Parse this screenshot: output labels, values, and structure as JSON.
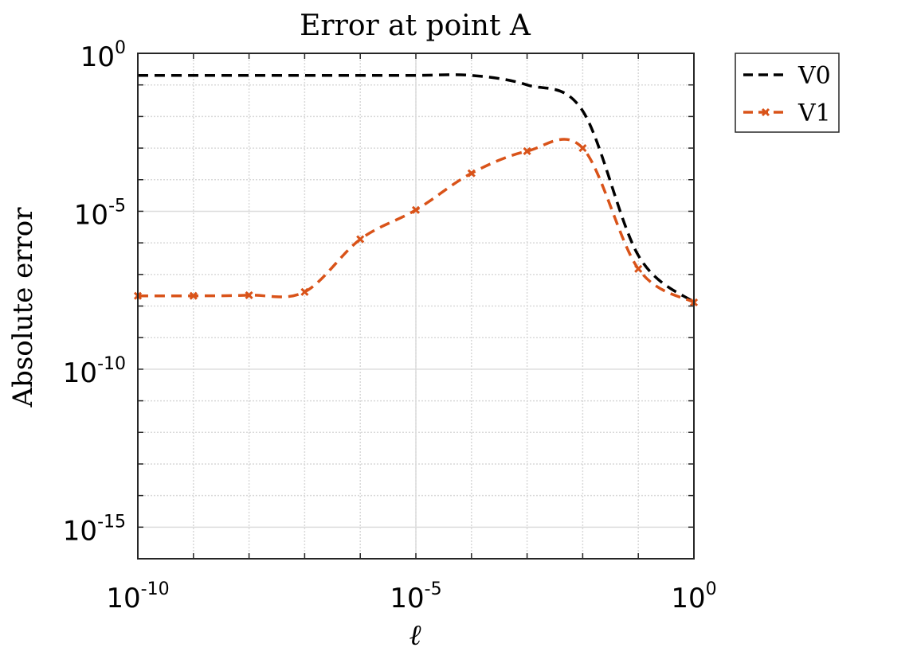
{
  "chart_data": {
    "type": "line",
    "title": "Error at point A",
    "xlabel": "ℓ",
    "ylabel": "Absolute error",
    "xscale": "log",
    "yscale": "log",
    "xlim": [
      1e-10,
      1
    ],
    "ylim": [
      1e-16,
      1
    ],
    "xticks": [
      1e-10,
      1e-05,
      1
    ],
    "xtick_labels": [
      {
        "base": "10",
        "exp": "-10"
      },
      {
        "base": "10",
        "exp": "-5"
      },
      {
        "base": "10",
        "exp": "0"
      }
    ],
    "yticks": [
      1e-15,
      1e-10,
      1e-05,
      1
    ],
    "ytick_labels": [
      {
        "base": "10",
        "exp": "-15"
      },
      {
        "base": "10",
        "exp": "-10"
      },
      {
        "base": "10",
        "exp": "-5"
      },
      {
        "base": "10",
        "exp": "0"
      }
    ],
    "grid": true,
    "legend_position": "outside-top-right",
    "series": [
      {
        "name": "V0",
        "color": "#000000",
        "line_style": "dashed",
        "marker": "none",
        "x": [
          1e-10,
          1e-09,
          1e-08,
          1e-07,
          1e-06,
          1e-05,
          0.0001,
          0.001,
          0.01,
          0.1,
          1
        ],
        "y": [
          0.2,
          0.2,
          0.2,
          0.2,
          0.2,
          0.2,
          0.2,
          0.1,
          0.015,
          4e-07,
          1.3e-08
        ]
      },
      {
        "name": "V1",
        "color": "#D95319",
        "line_style": "dashed",
        "marker": "x",
        "x": [
          1e-10,
          1e-09,
          1e-08,
          1e-07,
          1e-06,
          1e-05,
          0.0001,
          0.001,
          0.01,
          0.1,
          1
        ],
        "y": [
          2.1e-08,
          2.1e-08,
          2.2e-08,
          2.8e-08,
          1.3e-06,
          1.1e-05,
          0.00016,
          0.0008,
          0.001,
          1.5e-07,
          1.3e-08
        ]
      }
    ]
  }
}
